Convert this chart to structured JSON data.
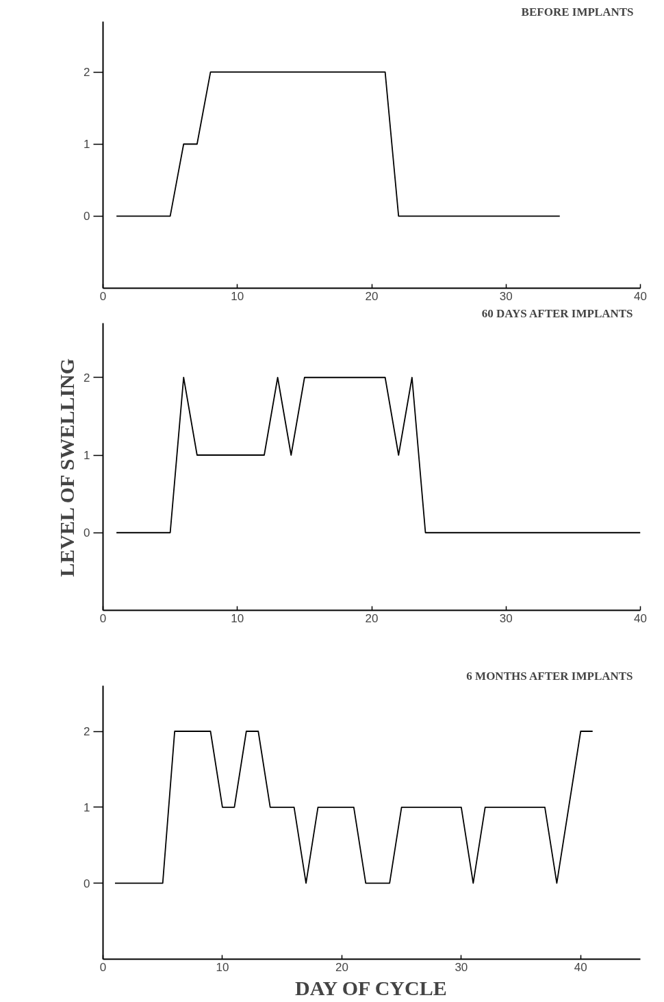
{
  "chart_data": [
    {
      "type": "line",
      "title": "BEFORE IMPLANTS",
      "x": [
        1,
        5,
        6,
        7,
        8,
        21,
        22,
        34
      ],
      "series": [
        {
          "color": "#000000",
          "values": [
            0,
            0,
            1,
            1,
            2,
            2,
            0,
            0
          ]
        }
      ],
      "xlim": [
        0,
        40
      ],
      "xticks": [
        0,
        10,
        20,
        30,
        40
      ],
      "ylim": [
        -1,
        2.7
      ],
      "yticks": [
        0,
        1,
        2
      ],
      "grid": false,
      "marker": "none",
      "line_style": "solid"
    },
    {
      "type": "line",
      "title": "60 DAYS AFTER IMPLANTS",
      "ylabel": "LEVEL OF SWELLING",
      "x": [
        1,
        5,
        6,
        7,
        12,
        13,
        14,
        15,
        21,
        22,
        23,
        24,
        40
      ],
      "series": [
        {
          "color": "#000000",
          "values": [
            0,
            0,
            2,
            1,
            1,
            2,
            1,
            2,
            2,
            1,
            2,
            0,
            0
          ]
        }
      ],
      "xlim": [
        0,
        40
      ],
      "xticks": [
        0,
        10,
        20,
        30,
        40
      ],
      "ylim": [
        -1,
        2.7
      ],
      "yticks": [
        0,
        1,
        2
      ],
      "grid": false,
      "marker": "none",
      "line_style": "solid"
    },
    {
      "type": "line",
      "title": "6 MONTHS AFTER IMPLANTS",
      "xlabel": "DAY OF CYCLE",
      "x": [
        1,
        5,
        6,
        9,
        10,
        11,
        12,
        13,
        14,
        16,
        17,
        18,
        21,
        22,
        24,
        25,
        30,
        31,
        32,
        37,
        38,
        40,
        41
      ],
      "series": [
        {
          "color": "#000000",
          "values": [
            0,
            0,
            2,
            2,
            1,
            1,
            2,
            2,
            1,
            1,
            0,
            1,
            1,
            0,
            0,
            1,
            1,
            0,
            1,
            1,
            0,
            2,
            2
          ]
        }
      ],
      "xlim": [
        0,
        45
      ],
      "xticks": [
        0,
        10,
        20,
        30,
        40
      ],
      "ylim": [
        -1,
        2.6
      ],
      "yticks": [
        0,
        1,
        2
      ],
      "grid": false,
      "marker": "none",
      "line_style": "solid"
    }
  ]
}
